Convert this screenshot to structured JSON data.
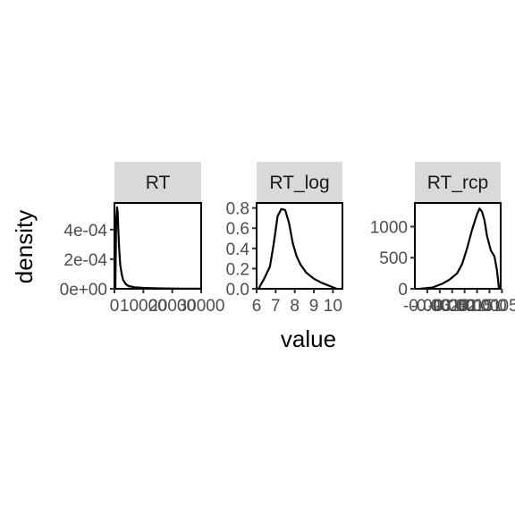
{
  "chart_data": {
    "type": "line",
    "xlabel": "value",
    "ylabel": "density",
    "grid": false,
    "panels": [
      {
        "strip": "RT",
        "xlim": [
          0,
          30000
        ],
        "ylim": [
          0,
          0.00058
        ],
        "x_ticks": [
          0,
          10000,
          20000,
          30000
        ],
        "x_tick_labels": [
          "0",
          "10000",
          "20000",
          "30000"
        ],
        "y_ticks": [
          0,
          0.0002,
          0.0004
        ],
        "y_tick_labels": [
          "0e+00",
          "2e-04",
          "4e-04"
        ],
        "series": [
          {
            "x": [
              300,
              600,
              900,
              1100,
              1300,
              1600,
              2000,
              2500,
              3000,
              4000,
              5000,
              7000,
              10000,
              15000,
              20000,
              25000,
              30000
            ],
            "y": [
              0.0,
              0.00045,
              0.00055,
              0.00052,
              0.00042,
              0.00028,
              0.00016,
              0.0001,
              6e-05,
              3e-05,
              1.8e-05,
              1e-05,
              6e-06,
              3e-06,
              2e-06,
              1e-06,
              5e-07
            ]
          }
        ]
      },
      {
        "strip": "RT_log",
        "xlim": [
          6,
          10.5
        ],
        "ylim": [
          0,
          0.85
        ],
        "x_ticks": [
          6,
          7,
          8,
          9,
          10
        ],
        "x_tick_labels": [
          "6",
          "7",
          "8",
          "9",
          "10"
        ],
        "y_ticks": [
          0,
          0.2,
          0.4,
          0.6,
          0.8
        ],
        "y_tick_labels": [
          "0.0",
          "0.2",
          "0.4",
          "0.6",
          "0.8"
        ],
        "series": [
          {
            "x": [
              6.1,
              6.4,
              6.7,
              6.9,
              7.1,
              7.3,
              7.5,
              7.7,
              7.9,
              8.1,
              8.3,
              8.6,
              9.0,
              9.4,
              9.8,
              10.2
            ],
            "y": [
              0.0,
              0.1,
              0.22,
              0.45,
              0.72,
              0.79,
              0.78,
              0.65,
              0.45,
              0.32,
              0.24,
              0.16,
              0.1,
              0.06,
              0.03,
              0.0
            ]
          }
        ]
      },
      {
        "strip": "RT_rcp",
        "xlim": [
          -0.0035,
          -5e-05
        ],
        "ylim": [
          0,
          1380
        ],
        "x_ticks": [
          -0.003,
          -0.0025,
          -0.002,
          -0.0015,
          -0.001,
          -0.0005,
          0
        ],
        "x_tick_labels": [
          "-0.003",
          "-0.0025",
          "-0.002",
          "-0.0015",
          "-0.001",
          "-0.0005",
          "0"
        ],
        "y_ticks": [
          0,
          500,
          1000
        ],
        "y_tick_labels": [
          "0",
          "500",
          "1000"
        ],
        "series": [
          {
            "x": [
              -0.0033,
              -0.0028,
              -0.0024,
              -0.0021,
              -0.0018,
              -0.0016,
              -0.0014,
              -0.0012,
              -0.001,
              -0.0009,
              -0.0008,
              -0.0007,
              -0.0006,
              -0.00045,
              -0.0003,
              -0.0002,
              -0.00012
            ],
            "y": [
              0,
              20,
              80,
              150,
              250,
              400,
              650,
              950,
              1200,
              1290,
              1240,
              1100,
              850,
              620,
              520,
              300,
              0
            ]
          }
        ]
      }
    ]
  }
}
